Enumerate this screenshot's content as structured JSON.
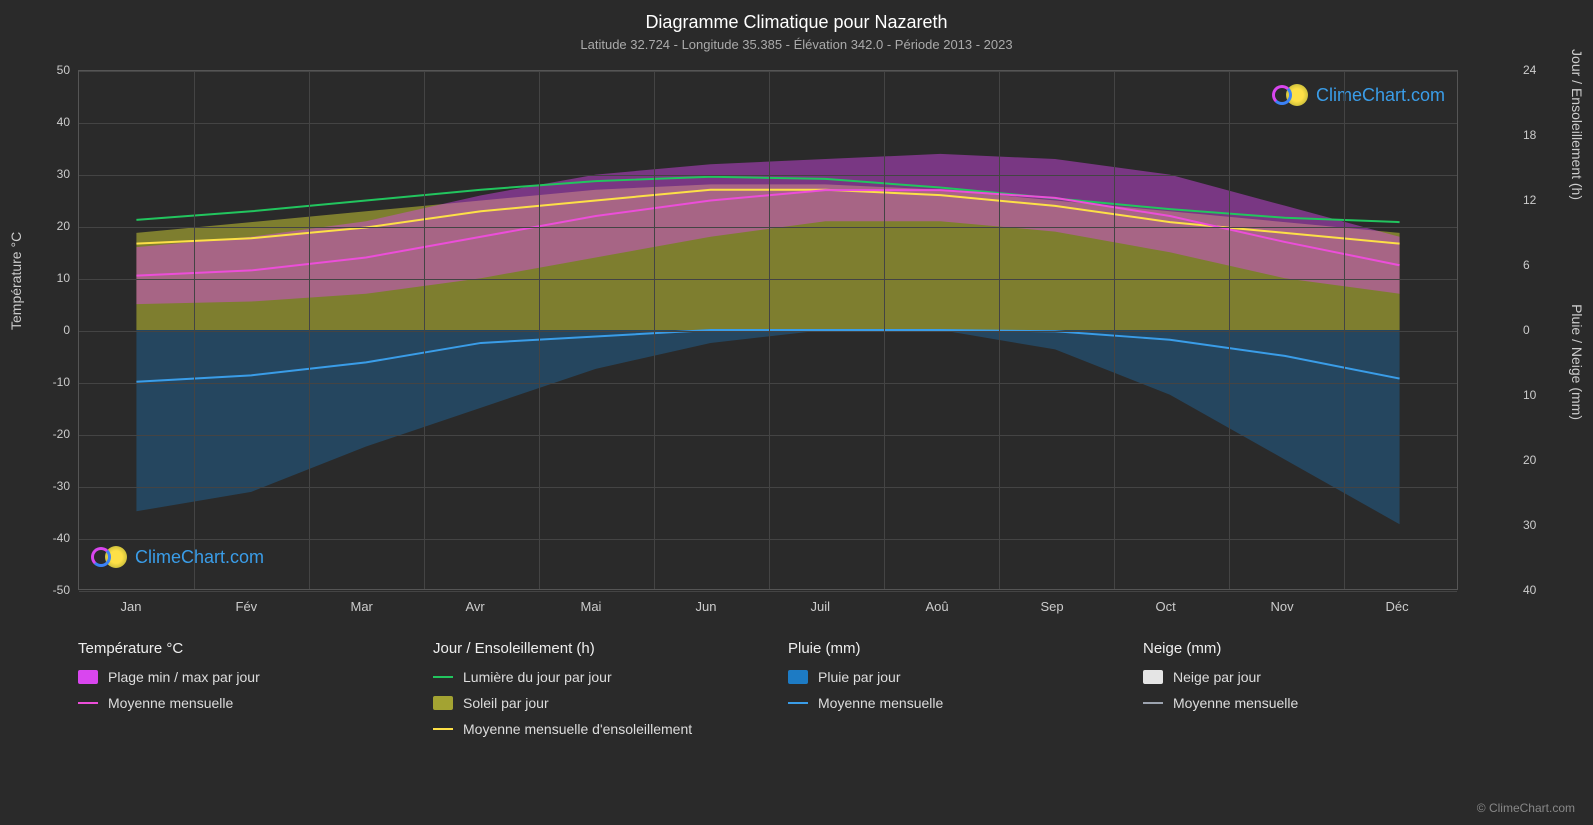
{
  "title": "Diagramme Climatique pour Nazareth",
  "subtitle": "Latitude 32.724 - Longitude 35.385 - Élévation 342.0 - Période 2013 - 2023",
  "watermark_text": "ClimeChart.com",
  "copyright": "© ClimeChart.com",
  "y_axis_left": {
    "label": "Température °C",
    "min": -50,
    "max": 50,
    "ticks": [
      -50,
      -40,
      -30,
      -20,
      -10,
      0,
      10,
      20,
      30,
      40,
      50
    ]
  },
  "y_axis_right_top": {
    "label": "Jour / Ensoleillement (h)",
    "ticks": [
      0,
      6,
      12,
      18,
      24
    ],
    "min": 0,
    "max": 24
  },
  "y_axis_right_bottom": {
    "label": "Pluie / Neige (mm)",
    "ticks": [
      0,
      10,
      20,
      30,
      40
    ],
    "min": 0,
    "max": 40
  },
  "months": [
    "Jan",
    "Fév",
    "Mar",
    "Avr",
    "Mai",
    "Jun",
    "Juil",
    "Aoû",
    "Sep",
    "Oct",
    "Nov",
    "Déc"
  ],
  "legend": {
    "temp": {
      "header": "Température °C",
      "items": [
        {
          "type": "swatch",
          "color": "#d946ef",
          "label": "Plage min / max par jour"
        },
        {
          "type": "line",
          "color": "#ec4ed9",
          "label": "Moyenne mensuelle"
        }
      ]
    },
    "daylight": {
      "header": "Jour / Ensoleillement (h)",
      "items": [
        {
          "type": "line",
          "color": "#22c55e",
          "label": "Lumière du jour par jour"
        },
        {
          "type": "swatch",
          "color": "#a3a332",
          "label": "Soleil par jour"
        },
        {
          "type": "line",
          "color": "#fde047",
          "label": "Moyenne mensuelle d'ensoleillement"
        }
      ]
    },
    "rain": {
      "header": "Pluie (mm)",
      "items": [
        {
          "type": "swatch",
          "color": "#1d7bc4",
          "label": "Pluie par jour"
        },
        {
          "type": "line",
          "color": "#3a9de8",
          "label": "Moyenne mensuelle"
        }
      ]
    },
    "snow": {
      "header": "Neige (mm)",
      "items": [
        {
          "type": "swatch",
          "color": "#e5e5e5",
          "label": "Neige par jour"
        },
        {
          "type": "line",
          "color": "#9ca3af",
          "label": "Moyenne mensuelle"
        }
      ]
    }
  },
  "chart": {
    "background": "#2a2a2a",
    "grid_color": "#444444",
    "colors": {
      "temp_range": "#d946ef",
      "temp_range_opacity": 0.45,
      "temp_mean": "#ec4ed9",
      "daylight": "#22c55e",
      "sunshine_fill": "#a3a332",
      "sunshine_fill_opacity": 0.7,
      "sunshine_mean": "#fde047",
      "rain_fill": "#1d7bc4",
      "rain_fill_opacity": 0.35,
      "rain_mean": "#3a9de8",
      "snow_fill": "#e5e5e5",
      "snow_mean": "#9ca3af"
    },
    "temp_mean_monthly": [
      10.5,
      11.5,
      14,
      18,
      22,
      25,
      27,
      27,
      25.5,
      22,
      17,
      12.5
    ],
    "temp_min_daily_approx": [
      5,
      5.5,
      7,
      10,
      14,
      18,
      21,
      21,
      19,
      15,
      10,
      7
    ],
    "temp_max_daily_approx": [
      16,
      18,
      21,
      26,
      30,
      32,
      33,
      34,
      33,
      30,
      24,
      18
    ],
    "daylight_hours": [
      10.2,
      11,
      12,
      13,
      13.8,
      14.2,
      14,
      13.2,
      12.2,
      11.2,
      10.4,
      10
    ],
    "sunshine_mean_hours": [
      8,
      8.5,
      9.5,
      11,
      12,
      13,
      13,
      12.5,
      11.5,
      10,
      9,
      8
    ],
    "sunshine_daily_max": [
      9,
      10,
      11,
      12,
      13,
      13.5,
      13.5,
      13,
      12,
      11,
      10,
      9
    ],
    "rain_mean_mm": [
      8,
      7,
      5,
      2,
      1,
      0,
      0,
      0,
      0.2,
      1.5,
      4,
      7.5
    ],
    "rain_daily_max_mm": [
      28,
      25,
      18,
      12,
      6,
      2,
      0,
      0,
      3,
      10,
      20,
      30
    ],
    "snow_mean_mm": [
      0,
      0,
      0,
      0,
      0,
      0,
      0,
      0,
      0,
      0,
      0,
      0
    ]
  }
}
